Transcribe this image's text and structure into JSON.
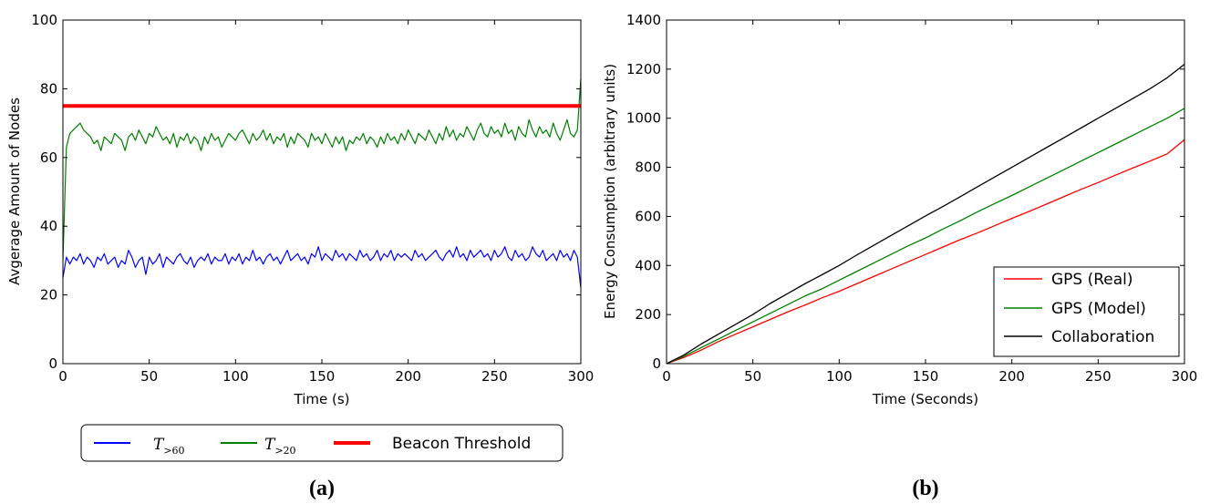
{
  "chart_data": [
    {
      "type": "line",
      "panel_label": "(a)",
      "xlabel": "Time (s)",
      "ylabel": "Avgerage Amount of Nodes",
      "xlim": [
        0,
        300
      ],
      "ylim": [
        0,
        100
      ],
      "xticks": [
        0,
        50,
        100,
        150,
        200,
        250,
        300
      ],
      "yticks": [
        0,
        20,
        40,
        60,
        80,
        100
      ],
      "grid": false,
      "legend_position": "below",
      "series": [
        {
          "name": "T>60",
          "legend_main": "T",
          "legend_sub": ">60",
          "color": "#0000ff",
          "x": [
            0,
            2,
            4,
            6,
            8,
            10,
            12,
            14,
            16,
            18,
            20,
            22,
            24,
            26,
            28,
            30,
            32,
            34,
            36,
            38,
            40,
            42,
            44,
            46,
            48,
            50,
            52,
            54,
            56,
            58,
            60,
            62,
            64,
            66,
            68,
            70,
            72,
            74,
            76,
            78,
            80,
            82,
            84,
            86,
            88,
            90,
            92,
            94,
            96,
            98,
            100,
            102,
            104,
            106,
            108,
            110,
            112,
            114,
            116,
            118,
            120,
            122,
            124,
            126,
            128,
            130,
            132,
            134,
            136,
            138,
            140,
            142,
            144,
            146,
            148,
            150,
            152,
            154,
            156,
            158,
            160,
            162,
            164,
            166,
            168,
            170,
            172,
            174,
            176,
            178,
            180,
            182,
            184,
            186,
            188,
            190,
            192,
            194,
            196,
            198,
            200,
            202,
            204,
            206,
            208,
            210,
            212,
            214,
            216,
            218,
            220,
            222,
            224,
            226,
            228,
            230,
            232,
            234,
            236,
            238,
            240,
            242,
            244,
            246,
            248,
            250,
            252,
            254,
            256,
            258,
            260,
            262,
            264,
            266,
            268,
            270,
            272,
            274,
            276,
            278,
            280,
            282,
            284,
            286,
            288,
            290,
            292,
            294,
            296,
            298,
            300
          ],
          "y": [
            25,
            31,
            29,
            31,
            30,
            32,
            29,
            31,
            30,
            28,
            31,
            30,
            32,
            29,
            30,
            31,
            28,
            30,
            29,
            33,
            31,
            28,
            30,
            31,
            26,
            31,
            29,
            30,
            32,
            28,
            31,
            30,
            29,
            31,
            32,
            30,
            29,
            31,
            28,
            30,
            31,
            30,
            32,
            29,
            31,
            30,
            30,
            32,
            29,
            31,
            30,
            32,
            29,
            31,
            30,
            33,
            30,
            31,
            29,
            31,
            32,
            30,
            31,
            29,
            31,
            33,
            30,
            31,
            32,
            30,
            31,
            29,
            32,
            31,
            34,
            30,
            32,
            31,
            30,
            33,
            31,
            32,
            30,
            32,
            31,
            30,
            33,
            31,
            32,
            30,
            31,
            33,
            30,
            32,
            31,
            33,
            30,
            32,
            31,
            32,
            31,
            30,
            33,
            31,
            32,
            30,
            31,
            32,
            33,
            31,
            30,
            32,
            33,
            31,
            34,
            31,
            32,
            30,
            33,
            31,
            32,
            33,
            31,
            32,
            30,
            33,
            31,
            32,
            34,
            31,
            30,
            33,
            31,
            32,
            30,
            31,
            34,
            32,
            31,
            33,
            30,
            31,
            32,
            30,
            33,
            31,
            32,
            30,
            33,
            31,
            22
          ]
        },
        {
          "name": "T>20",
          "legend_main": "T",
          "legend_sub": ">20",
          "color": "#008000",
          "x": [
            0,
            2,
            4,
            6,
            8,
            10,
            12,
            14,
            16,
            18,
            20,
            22,
            24,
            26,
            28,
            30,
            32,
            34,
            36,
            38,
            40,
            42,
            44,
            46,
            48,
            50,
            52,
            54,
            56,
            58,
            60,
            62,
            64,
            66,
            68,
            70,
            72,
            74,
            76,
            78,
            80,
            82,
            84,
            86,
            88,
            90,
            92,
            94,
            96,
            98,
            100,
            102,
            104,
            106,
            108,
            110,
            112,
            114,
            116,
            118,
            120,
            122,
            124,
            126,
            128,
            130,
            132,
            134,
            136,
            138,
            140,
            142,
            144,
            146,
            148,
            150,
            152,
            154,
            156,
            158,
            160,
            162,
            164,
            166,
            168,
            170,
            172,
            174,
            176,
            178,
            180,
            182,
            184,
            186,
            188,
            190,
            192,
            194,
            196,
            198,
            200,
            202,
            204,
            206,
            208,
            210,
            212,
            214,
            216,
            218,
            220,
            222,
            224,
            226,
            228,
            230,
            232,
            234,
            236,
            238,
            240,
            242,
            244,
            246,
            248,
            250,
            252,
            254,
            256,
            258,
            260,
            262,
            264,
            266,
            268,
            270,
            272,
            274,
            276,
            278,
            280,
            282,
            284,
            286,
            288,
            290,
            292,
            294,
            296,
            298,
            300
          ],
          "y": [
            30,
            63,
            67,
            68,
            69,
            70,
            68,
            67,
            66,
            64,
            65,
            62,
            66,
            65,
            64,
            67,
            66,
            65,
            62,
            66,
            67,
            65,
            68,
            66,
            64,
            67,
            66,
            69,
            67,
            65,
            66,
            64,
            67,
            63,
            66,
            65,
            67,
            64,
            66,
            65,
            62,
            66,
            64,
            67,
            65,
            66,
            63,
            65,
            67,
            66,
            65,
            67,
            68,
            66,
            64,
            67,
            65,
            66,
            68,
            65,
            67,
            64,
            66,
            65,
            67,
            63,
            66,
            64,
            67,
            66,
            65,
            63,
            67,
            65,
            66,
            64,
            67,
            65,
            63,
            66,
            64,
            66,
            62,
            65,
            64,
            66,
            65,
            67,
            64,
            66,
            65,
            63,
            66,
            64,
            67,
            65,
            66,
            64,
            67,
            65,
            68,
            66,
            64,
            67,
            66,
            65,
            68,
            66,
            64,
            67,
            65,
            69,
            66,
            68,
            65,
            67,
            66,
            69,
            67,
            65,
            68,
            70,
            67,
            66,
            69,
            67,
            68,
            66,
            70,
            67,
            68,
            65,
            69,
            67,
            66,
            71,
            68,
            66,
            69,
            67,
            68,
            66,
            70,
            67,
            65,
            68,
            71,
            67,
            66,
            68,
            83
          ]
        },
        {
          "name": "Beacon Threshold",
          "color": "#ff0000",
          "x": [
            0,
            300
          ],
          "y": [
            75,
            75
          ]
        }
      ]
    },
    {
      "type": "line",
      "panel_label": "(b)",
      "xlabel": "Time (Seconds)",
      "ylabel": "Energy Consumption (arbitrary units)",
      "xlim": [
        0,
        300
      ],
      "ylim": [
        0,
        1400
      ],
      "xticks": [
        0,
        50,
        100,
        150,
        200,
        250,
        300
      ],
      "yticks": [
        0,
        200,
        400,
        600,
        800,
        1000,
        1200,
        1400
      ],
      "grid": false,
      "legend_position": "bottom-right",
      "series": [
        {
          "name": "GPS (Real)",
          "color": "#ff0000",
          "x": [
            0,
            10,
            20,
            30,
            40,
            50,
            60,
            70,
            80,
            90,
            100,
            110,
            120,
            130,
            140,
            150,
            160,
            170,
            180,
            190,
            200,
            210,
            220,
            230,
            240,
            250,
            260,
            270,
            280,
            290,
            300
          ],
          "y": [
            0,
            25,
            55,
            90,
            120,
            150,
            180,
            210,
            238,
            268,
            295,
            325,
            355,
            385,
            415,
            445,
            475,
            505,
            532,
            562,
            592,
            620,
            650,
            680,
            710,
            738,
            768,
            797,
            825,
            855,
            912
          ]
        },
        {
          "name": "GPS (Model)",
          "color": "#008000",
          "x": [
            0,
            10,
            20,
            30,
            40,
            50,
            60,
            70,
            80,
            90,
            100,
            110,
            120,
            130,
            140,
            150,
            160,
            170,
            180,
            190,
            200,
            210,
            220,
            230,
            240,
            250,
            260,
            270,
            280,
            290,
            300
          ],
          "y": [
            0,
            30,
            65,
            100,
            135,
            170,
            205,
            240,
            275,
            305,
            340,
            375,
            410,
            445,
            480,
            512,
            548,
            582,
            618,
            652,
            685,
            720,
            755,
            790,
            825,
            860,
            895,
            930,
            965,
            1000,
            1040
          ]
        },
        {
          "name": "Collaboration",
          "color": "#000000",
          "x": [
            0,
            10,
            20,
            30,
            40,
            50,
            60,
            70,
            80,
            90,
            100,
            110,
            120,
            130,
            140,
            150,
            160,
            170,
            180,
            190,
            200,
            210,
            220,
            230,
            240,
            250,
            260,
            270,
            280,
            290,
            300
          ],
          "y": [
            0,
            35,
            80,
            120,
            160,
            200,
            245,
            285,
            325,
            362,
            400,
            442,
            482,
            522,
            562,
            602,
            640,
            680,
            720,
            760,
            800,
            840,
            880,
            920,
            960,
            1000,
            1040,
            1080,
            1120,
            1165,
            1220
          ]
        }
      ]
    }
  ]
}
